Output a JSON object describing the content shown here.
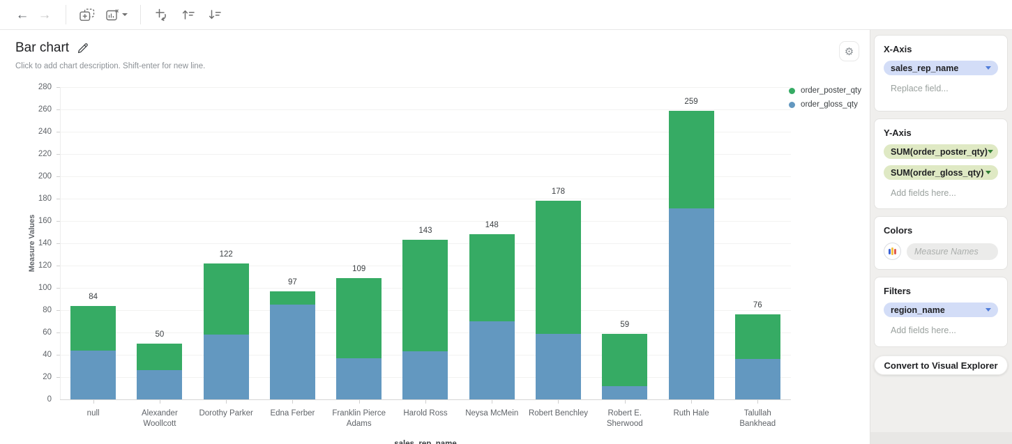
{
  "toolbar": {
    "icons": [
      "back",
      "forward",
      "add-element",
      "remove-chart",
      "swap-axes",
      "sort-ascending",
      "sort-descending"
    ]
  },
  "chart": {
    "title": "Bar chart",
    "description_placeholder": "Click to add chart description. Shift-enter for new line."
  },
  "chart_data": {
    "type": "bar",
    "stacked": true,
    "title": "Bar chart",
    "xlabel": "sales_rep_name",
    "ylabel": "Measure Values",
    "ylim": [
      0,
      280
    ],
    "ytick_step": 20,
    "grid": true,
    "legend_position": "top-right",
    "categories": [
      "null",
      "Alexander Woollcott",
      "Dorothy Parker",
      "Edna Ferber",
      "Franklin Pierce Adams",
      "Harold Ross",
      "Neysa McMein",
      "Robert Benchley",
      "Robert E. Sherwood",
      "Ruth Hale",
      "Talullah Bankhead"
    ],
    "series": [
      {
        "name": "order_poster_qty",
        "color": "#36ab64",
        "stack_position": "top",
        "values": [
          40,
          24,
          64,
          12,
          72,
          100,
          78,
          119,
          47,
          88,
          40
        ]
      },
      {
        "name": "order_gloss_qty",
        "color": "#6398c0",
        "stack_position": "bottom",
        "values": [
          44,
          26,
          58,
          85,
          37,
          43,
          70,
          59,
          12,
          171,
          36
        ]
      }
    ],
    "totals": [
      84,
      50,
      122,
      97,
      109,
      143,
      148,
      178,
      59,
      259,
      76
    ]
  },
  "sidebar": {
    "x_axis": {
      "title": "X-Axis",
      "pill_style": "blue",
      "fields": [
        {
          "label": "sales_rep_name"
        }
      ],
      "placeholder": "Replace field..."
    },
    "y_axis": {
      "title": "Y-Axis",
      "pill_style": "green",
      "fields": [
        {
          "label": "SUM(order_poster_qty)"
        },
        {
          "label": "SUM(order_gloss_qty)"
        }
      ],
      "placeholder": "Add fields here..."
    },
    "colors": {
      "title": "Colors",
      "placeholder": "Measure Names"
    },
    "filters": {
      "title": "Filters",
      "pill_style": "blue",
      "fields": [
        {
          "label": "region_name"
        }
      ],
      "placeholder": "Add fields here..."
    },
    "convert_button": "Convert to Visual Explorer"
  }
}
